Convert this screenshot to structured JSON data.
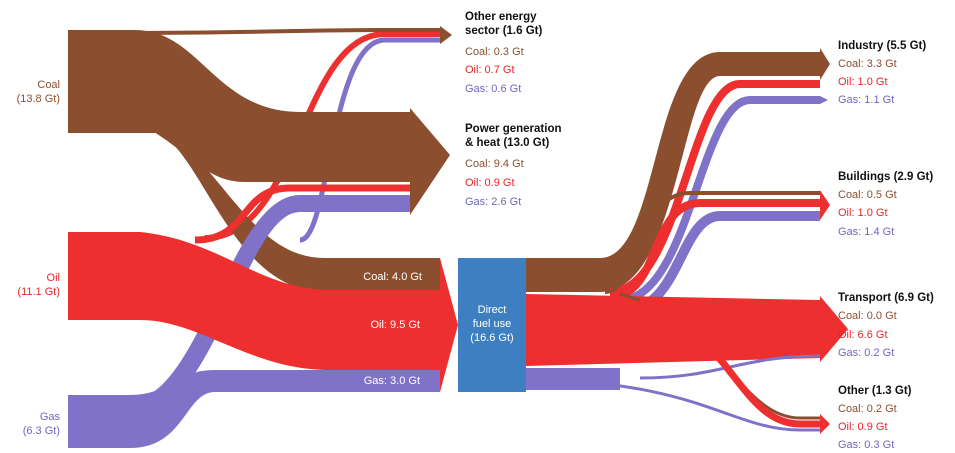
{
  "colors": {
    "coal": "#8B4F30",
    "oil": "#EE2F2F",
    "gas": "#7F72C8",
    "hub": "#3E7FC1",
    "coal_text": "#8B4F30",
    "oil_text": "#E8262A",
    "gas_text": "#6E66C2"
  },
  "sources": {
    "coal": {
      "line1": "Coal",
      "line2": "(13.8 Gt)"
    },
    "oil": {
      "line1": "Oil",
      "line2": "(11.1 Gt)"
    },
    "gas": {
      "line1": "Gas",
      "line2": "(6.3 Gt)"
    }
  },
  "other_energy": {
    "title1": "Other energy",
    "title2": "sector (1.6 Gt)",
    "coal": "Coal: 0.3 Gt",
    "oil": "Oil: 0.7 Gt",
    "gas": "Gas: 0.6 Gt"
  },
  "power": {
    "title1": "Power generation",
    "title2": "& heat (13.0 Gt)",
    "coal": "Coal: 9.4 Gt",
    "oil": "Oil: 0.9 Gt",
    "gas": "Gas: 2.6 Gt"
  },
  "direct_inputs": {
    "coal": "Coal: 4.0 Gt",
    "oil": "Oil: 9.5 Gt",
    "gas": "Gas: 3.0 Gt"
  },
  "hub": {
    "line1": "Direct",
    "line2": "fuel use",
    "line3": "(16.6 Gt)"
  },
  "industry": {
    "title": "Industry (5.5 Gt)",
    "coal": "Coal: 3.3 Gt",
    "oil": "Oil: 1.0 Gt",
    "gas": "Gas: 1.1 Gt"
  },
  "buildings": {
    "title": "Buildings (2.9 Gt)",
    "coal": "Coal: 0.5 Gt",
    "oil": "Oil: 1.0 Gt",
    "gas": "Gas: 1.4 Gt"
  },
  "transport": {
    "title": "Transport (6.9 Gt)",
    "coal": "Coal: 0.0 Gt",
    "oil": "Oil: 6.6 Gt",
    "gas": "Gas: 0.2 Gt"
  },
  "other": {
    "title": "Other (1.3 Gt)",
    "coal": "Coal: 0.2 Gt",
    "oil": "Oil: 0.9 Gt",
    "gas": "Gas: 0.3 Gt"
  }
}
